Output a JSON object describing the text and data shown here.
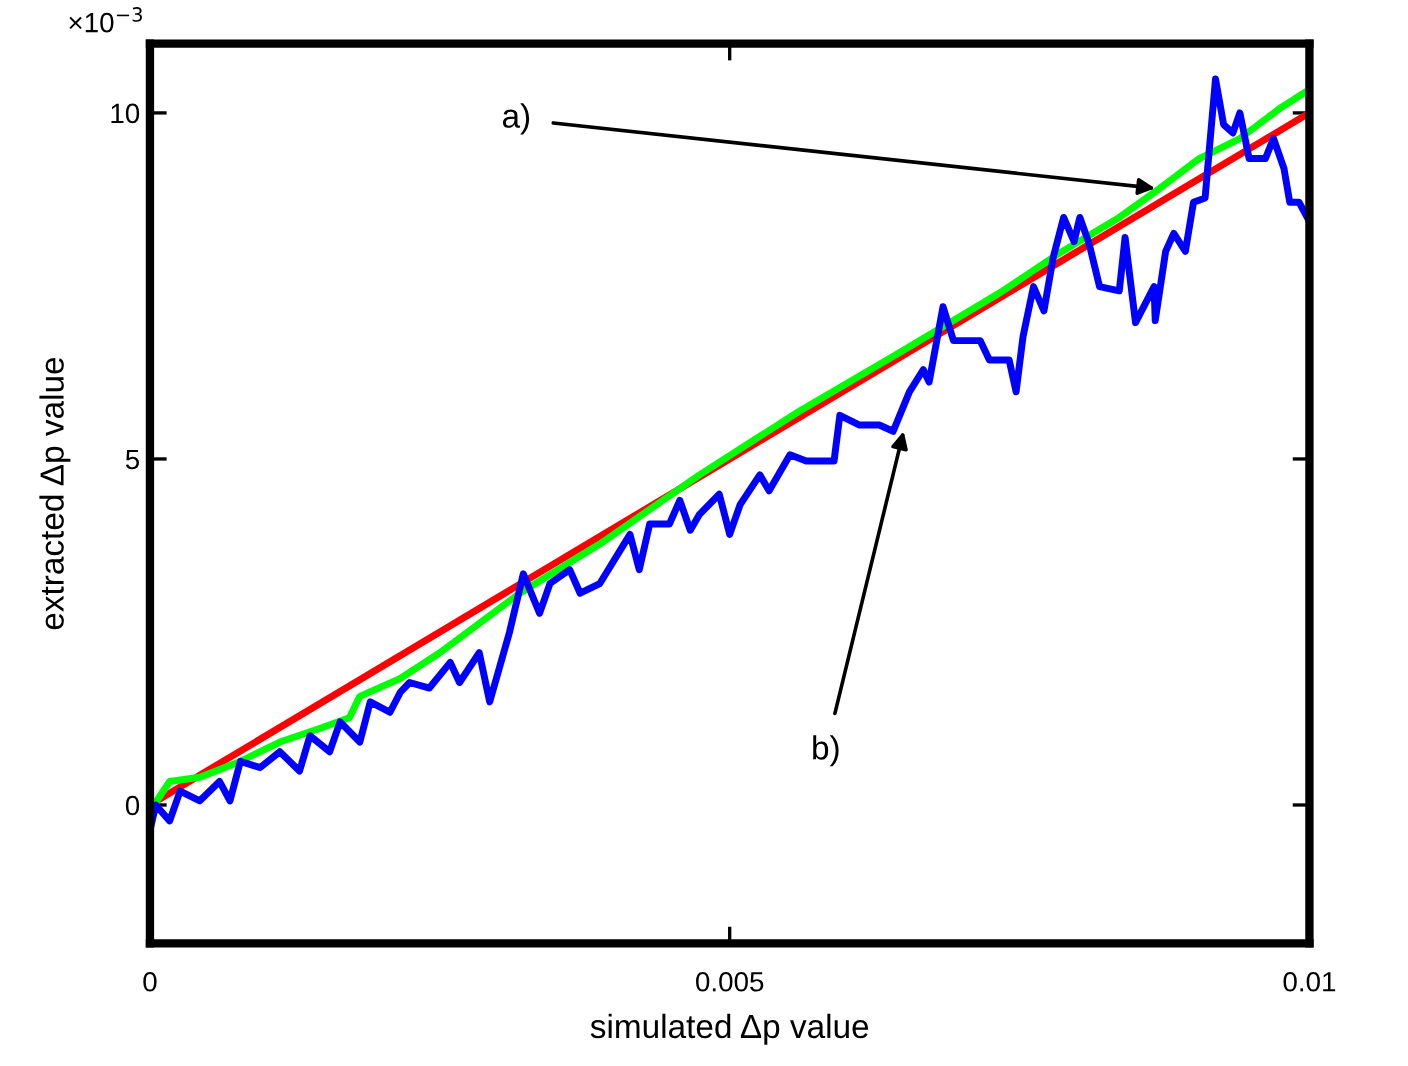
{
  "chart_data": {
    "type": "line",
    "xlabel": "simulated Δp value",
    "ylabel": "extracted Δp value",
    "xlim": [
      0,
      0.01
    ],
    "ylim": [
      -2,
      11
    ],
    "xticks": [
      0,
      0.005,
      0.01
    ],
    "yticks": [
      0,
      5,
      10
    ],
    "grid": false,
    "legend": false,
    "marker": "none",
    "line_style": "solid",
    "series": [
      {
        "color": "#ff0000",
        "x": [
          0,
          0.0025,
          0.005,
          0.0075,
          0.01
        ],
        "values": [
          0,
          2.5,
          5,
          7.5,
          10
        ]
      },
      {
        "color": "#00ff00",
        "x": [
          0,
          0.00017,
          0.00043,
          0.00078,
          0.00112,
          0.00147,
          0.00172,
          0.00181,
          0.00216,
          0.0025,
          0.00319,
          0.00388,
          0.00474,
          0.0056,
          0.00647,
          0.00733,
          0.00784,
          0.00836,
          0.00871,
          0.00905,
          0.0094,
          0.00974,
          0.01
        ],
        "values": [
          -0.09,
          0.34,
          0.4,
          0.63,
          0.91,
          1.11,
          1.26,
          1.57,
          1.83,
          2.2,
          3.06,
          3.77,
          4.77,
          5.69,
          6.54,
          7.4,
          7.97,
          8.49,
          8.91,
          9.34,
          9.63,
          10.06,
          10.34
        ]
      },
      {
        "color": "#0000ff",
        "x": [
          0,
          5e-05,
          0.00017,
          0.00026,
          0.00043,
          0.0006,
          0.00069,
          0.00078,
          0.00095,
          0.00112,
          0.00129,
          0.00138,
          0.00155,
          0.00164,
          0.00181,
          0.0019,
          0.00207,
          0.00216,
          0.00224,
          0.00241,
          0.00259,
          0.00267,
          0.00284,
          0.00293,
          0.0031,
          0.00322,
          0.00336,
          0.00345,
          0.00362,
          0.00371,
          0.00388,
          0.00414,
          0.00422,
          0.00431,
          0.00448,
          0.00457,
          0.00466,
          0.00474,
          0.00491,
          0.005,
          0.00509,
          0.00526,
          0.00534,
          0.00552,
          0.00566,
          0.0059,
          0.00595,
          0.00612,
          0.00629,
          0.00641,
          0.00655,
          0.00667,
          0.00672,
          0.00684,
          0.00693,
          0.00716,
          0.00724,
          0.00741,
          0.00747,
          0.00753,
          0.00762,
          0.00771,
          0.00779,
          0.00788,
          0.00797,
          0.00802,
          0.0081,
          0.00819,
          0.00836,
          0.00841,
          0.0085,
          0.00866,
          0.00867,
          0.00876,
          0.00883,
          0.00893,
          0.009,
          0.0091,
          0.00914,
          0.00919,
          0.00926,
          0.00934,
          0.0094,
          0.00948,
          0.00962,
          0.00969,
          0.00978,
          0.00983,
          0.00991,
          0.01
        ],
        "values": [
          -0.37,
          0,
          -0.23,
          0.2,
          0.06,
          0.34,
          0.06,
          0.63,
          0.54,
          0.77,
          0.49,
          1.0,
          0.77,
          1.2,
          0.91,
          1.49,
          1.34,
          1.63,
          1.77,
          1.69,
          2.06,
          1.77,
          2.2,
          1.49,
          2.49,
          3.34,
          2.77,
          3.2,
          3.4,
          3.06,
          3.2,
          3.91,
          3.4,
          4.06,
          4.06,
          4.4,
          3.97,
          4.2,
          4.49,
          3.91,
          4.34,
          4.77,
          4.54,
          5.06,
          4.97,
          4.97,
          5.63,
          5.49,
          5.49,
          5.4,
          5.97,
          6.29,
          6.11,
          7.2,
          6.71,
          6.71,
          6.43,
          6.43,
          5.97,
          6.77,
          7.49,
          7.14,
          7.91,
          8.49,
          8.14,
          8.49,
          8.11,
          7.49,
          7.43,
          8.2,
          6.97,
          7.49,
          7.0,
          8.0,
          8.26,
          8.0,
          8.71,
          8.77,
          9.54,
          10.49,
          9.83,
          9.71,
          10.0,
          9.34,
          9.34,
          9.63,
          9.2,
          8.71,
          8.71,
          8.43
        ]
      }
    ],
    "annotations": [
      "×10$^{−3}$",
      {
        "text": "a)",
        "x": 0.00867,
        "y": 8.91
      },
      {
        "text": "b)",
        "x": 0.0065,
        "y": 5.4
      }
    ]
  }
}
